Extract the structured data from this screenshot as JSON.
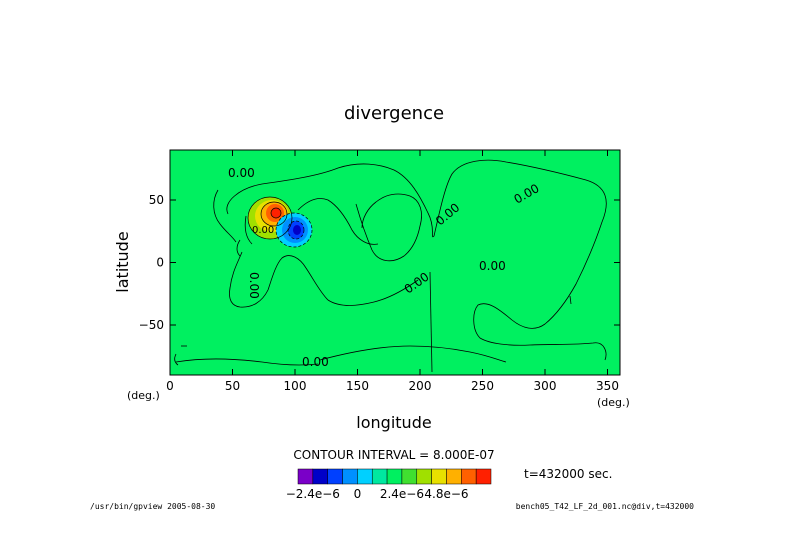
{
  "chart_data": {
    "type": "heatmap",
    "title": "divergence",
    "xlabel": "longitude",
    "ylabel": "latitude",
    "x_units": "(deg.)",
    "y_units": "(deg.)",
    "xlim": [
      0,
      360
    ],
    "ylim": [
      -90,
      90
    ],
    "x_ticks": [
      0,
      50,
      100,
      150,
      200,
      250,
      300,
      350
    ],
    "y_ticks": [
      50,
      0,
      -50
    ],
    "contour_interval_text": "CONTOUR INTERVAL = 8.000E-07",
    "time_text": "t=432000 sec.",
    "contour_labels": [
      "0.00",
      "0.00",
      "0.00",
      "0.00",
      "0.00",
      "0.00",
      "0.00",
      "0.00"
    ],
    "colorbar": {
      "colors": [
        "#7a00c8",
        "#0000c8",
        "#0040ff",
        "#0090ff",
        "#00d0ff",
        "#00e8a0",
        "#00f060",
        "#40e030",
        "#a0e000",
        "#e8e000",
        "#ffb000",
        "#ff6000",
        "#ff2000"
      ],
      "tick_labels": [
        "−2.4e−6",
        "0",
        "2.4e−6",
        "4.8e−6"
      ],
      "tick_values": [
        -2.4e-06,
        0,
        2.4e-06,
        4.8e-06
      ]
    }
  },
  "footer": {
    "left": "/usr/bin/gpview  2005-08-30",
    "right": "bench05_T42_LF_2d_001.nc@div,t=432000"
  }
}
